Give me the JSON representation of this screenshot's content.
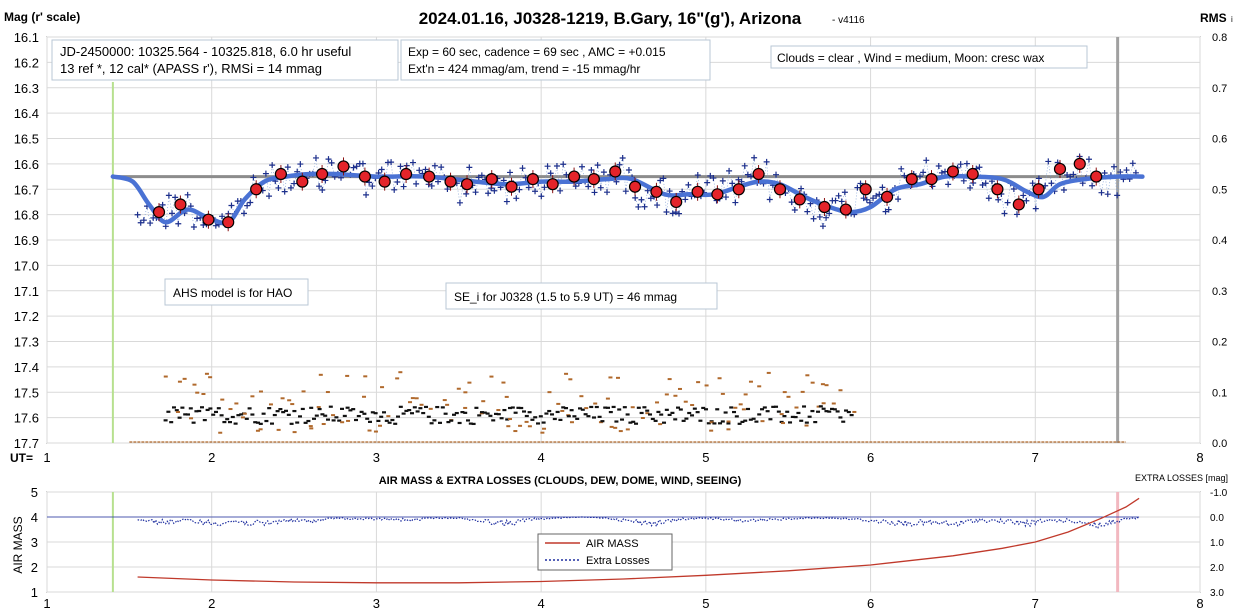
{
  "chart_data": [
    {
      "type": "scatter",
      "title": "2024.01.16, J0328-1219, B.Gary, 16\"(g'), Arizona",
      "version": "- v4116",
      "ylabel": "Mag (r' scale)",
      "y2label": "RMS",
      "y2label_sub": "i",
      "xlabel": "UT=",
      "xlim": [
        1,
        8
      ],
      "ylim": [
        16.1,
        17.7
      ],
      "y2lim": [
        0.0,
        0.8
      ],
      "y_inverted": true,
      "x_ticks": [
        "1",
        "2",
        "3",
        "4",
        "5",
        "6",
        "7",
        "8"
      ],
      "y_ticks": [
        "16.1",
        "16.2",
        "16.3",
        "16.4",
        "16.5",
        "16.6",
        "16.7",
        "16.8",
        "16.9",
        "17.0",
        "17.1",
        "17.2",
        "17.3",
        "17.4",
        "17.5",
        "17.6",
        "17.7"
      ],
      "y2_ticks": [
        "0.8",
        "0.7",
        "0.6",
        "0.5",
        "0.4",
        "0.3",
        "0.2",
        "0.1",
        "0.0"
      ],
      "grid": true,
      "annotations": {
        "jd": [
          "JD-2450000: 10325.564 - 10325.818, 6.0 hr useful",
          "13 ref *, 12 cal*  (APASS r'), RMSi = 14 mmag"
        ],
        "exp": [
          "Exp = 60 sec, cadence = 69 sec , AMC = +0.015",
          "Ext'n = 424 mmag/am, trend = -15 mmag/hr"
        ],
        "clouds": "Clouds = clear , Wind = medium,  Moon:  cresc wax",
        "ahs": "AHS model is for HAO",
        "se": "SE_i for J0328 (1.5 to 5.9 UT) = 46 mmag"
      },
      "reference_mag": 16.65,
      "start_ut": 1.4,
      "end_ut": 7.5,
      "binned_mags": {
        "x": [
          1.68,
          1.81,
          1.98,
          2.1,
          2.27,
          2.42,
          2.55,
          2.67,
          2.8,
          2.93,
          3.05,
          3.18,
          3.32,
          3.45,
          3.55,
          3.7,
          3.82,
          3.95,
          4.07,
          4.2,
          4.32,
          4.45,
          4.57,
          4.7,
          4.82,
          4.95,
          5.07,
          5.2,
          5.32,
          5.45,
          5.57,
          5.72,
          5.85,
          5.97,
          6.1,
          6.25,
          6.37,
          6.5,
          6.62,
          6.77,
          6.9,
          7.02,
          7.15,
          7.27,
          7.37
        ],
        "y": [
          16.79,
          16.76,
          16.82,
          16.83,
          16.7,
          16.64,
          16.67,
          16.64,
          16.61,
          16.65,
          16.67,
          16.64,
          16.65,
          16.67,
          16.68,
          16.66,
          16.69,
          16.66,
          16.68,
          16.65,
          16.66,
          16.63,
          16.69,
          16.71,
          16.75,
          16.71,
          16.72,
          16.7,
          16.64,
          16.7,
          16.74,
          16.77,
          16.78,
          16.7,
          16.73,
          16.66,
          16.66,
          16.63,
          16.64,
          16.7,
          16.76,
          16.7,
          16.62,
          16.6,
          16.65
        ]
      },
      "model_curve": {
        "x": [
          1.4,
          1.52,
          1.62,
          1.72,
          1.85,
          1.97,
          2.1,
          2.2,
          2.32,
          2.45,
          2.6,
          2.75,
          3.0,
          3.3,
          3.6,
          3.8,
          4.0,
          4.2,
          4.4,
          4.55,
          4.75,
          4.9,
          5.05,
          5.2,
          5.32,
          5.45,
          5.6,
          5.75,
          5.88,
          6.0,
          6.15,
          6.3,
          6.45,
          6.6,
          6.8,
          6.95,
          7.05,
          7.15,
          7.3,
          7.5,
          7.65
        ],
        "y": [
          16.65,
          16.67,
          16.76,
          16.83,
          16.78,
          16.81,
          16.83,
          16.74,
          16.67,
          16.65,
          16.64,
          16.64,
          16.65,
          16.65,
          16.67,
          16.68,
          16.67,
          16.67,
          16.66,
          16.66,
          16.72,
          16.72,
          16.72,
          16.69,
          16.67,
          16.68,
          16.73,
          16.77,
          16.79,
          16.77,
          16.7,
          16.68,
          16.65,
          16.65,
          16.66,
          16.71,
          16.73,
          16.68,
          16.66,
          16.65,
          16.65
        ]
      }
    },
    {
      "type": "line",
      "title": "AIR MASS & EXTRA LOSSES (CLOUDS, DEW, DOME, WIND, SEEING)",
      "ylabel": "AIR MASS",
      "y2label": "EXTRA LOSSES [mag]",
      "xlim": [
        1,
        8
      ],
      "ylim": [
        1,
        5
      ],
      "y2lim": [
        -1.0,
        3.0
      ],
      "x_ticks": [
        "1",
        "2",
        "3",
        "4",
        "5",
        "6",
        "7",
        "8"
      ],
      "y_ticks": [
        "5",
        "4",
        "3",
        "2",
        "1"
      ],
      "y2_ticks": [
        "-1.0",
        "0.0",
        "1.0",
        "2.0",
        "3.0"
      ],
      "legend": [
        "AIR MASS",
        "Extra Losses"
      ],
      "series": [
        {
          "name": "AIR MASS",
          "color": "#c0392b",
          "x": [
            1.55,
            2.0,
            2.5,
            3.0,
            3.5,
            4.0,
            4.5,
            5.0,
            5.5,
            6.0,
            6.5,
            6.8,
            7.0,
            7.2,
            7.4,
            7.55,
            7.63
          ],
          "y": [
            1.6,
            1.48,
            1.4,
            1.37,
            1.37,
            1.42,
            1.52,
            1.67,
            1.85,
            2.08,
            2.45,
            2.75,
            3.0,
            3.4,
            3.95,
            4.4,
            4.75
          ]
        },
        {
          "name": "Extra Losses",
          "color": "#1f2fa0",
          "x": [
            1.55,
            1.7,
            1.85,
            2.0,
            2.15,
            2.3,
            2.45,
            2.6,
            2.75,
            2.9,
            3.05,
            3.2,
            3.35,
            3.5,
            3.65,
            3.8,
            3.95,
            4.1,
            4.25,
            4.4,
            4.55,
            4.7,
            4.85,
            5.0,
            5.15,
            5.3,
            5.45,
            5.6,
            5.75,
            5.9,
            6.05,
            6.2,
            6.35,
            6.5,
            6.65,
            6.8,
            6.95,
            7.1,
            7.25,
            7.4,
            7.55,
            7.63
          ],
          "y": [
            0.1,
            0.25,
            0.15,
            0.3,
            0.2,
            0.35,
            0.15,
            0.2,
            0.05,
            0.1,
            0.1,
            0.15,
            0.05,
            0.05,
            0.2,
            0.3,
            0.1,
            0.05,
            0.0,
            0.05,
            0.2,
            0.3,
            0.1,
            0.05,
            0.15,
            0.2,
            0.1,
            0.05,
            0.05,
            0.1,
            0.2,
            0.3,
            0.25,
            0.35,
            0.15,
            0.2,
            0.3,
            0.15,
            0.2,
            0.4,
            0.1,
            0.05
          ]
        }
      ]
    }
  ]
}
